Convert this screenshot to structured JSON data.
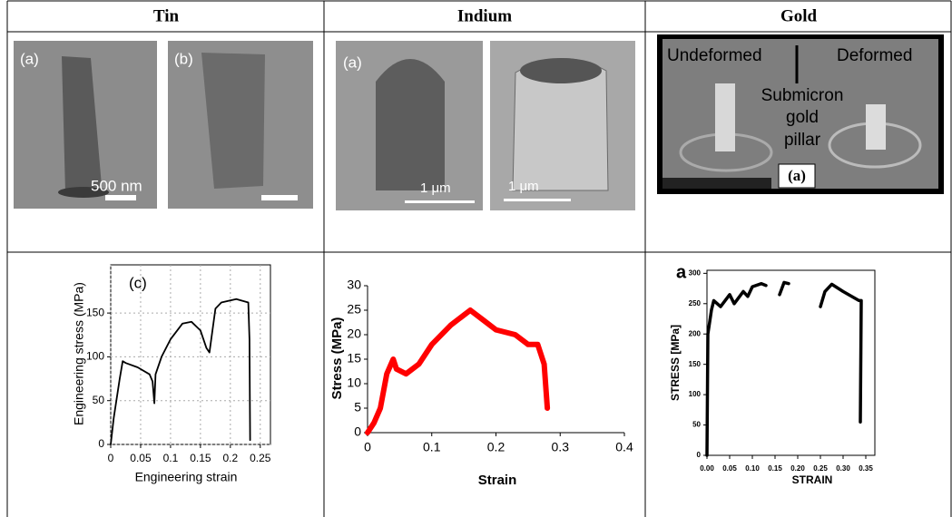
{
  "table": {
    "header": [
      "Tin",
      "Indium",
      "Gold"
    ]
  },
  "images": {
    "tin": {
      "labels": [
        "(a)",
        "(b)"
      ],
      "scale": "500 nm"
    },
    "indium": {
      "labels": [
        "(a)"
      ],
      "scales": [
        "1 μm",
        "1 μm"
      ]
    },
    "gold": {
      "labels": [
        "Undeformed",
        "Deformed",
        "Submicron",
        "gold",
        "pillar",
        "(a)"
      ]
    }
  },
  "charts": [
    {
      "type": "line",
      "panel": "(c)",
      "xlabel": "Engineering strain",
      "ylabel": "Engineering stress (MPa)",
      "color": "#000000",
      "xlim": [
        0,
        0.267
      ],
      "ylim": [
        0,
        205
      ],
      "xticks": [
        0,
        0.05,
        0.1,
        0.15,
        0.2,
        0.25
      ],
      "yticks": [
        0,
        50,
        100,
        150
      ],
      "x": [
        0,
        0.005,
        0.015,
        0.02,
        0.025,
        0.045,
        0.065,
        0.07,
        0.073,
        0.075,
        0.085,
        0.1,
        0.12,
        0.135,
        0.15,
        0.16,
        0.165,
        0.17,
        0.175,
        0.185,
        0.21,
        0.23,
        0.232,
        0.233
      ],
      "y": [
        0,
        30,
        75,
        95,
        93,
        88,
        80,
        72,
        47,
        80,
        100,
        120,
        138,
        140,
        130,
        110,
        105,
        130,
        155,
        162,
        166,
        162,
        120,
        5
      ]
    },
    {
      "type": "line",
      "xlabel": "Strain",
      "ylabel": "Stress (MPa)",
      "color": "#ff0000",
      "xlim": [
        0,
        0.4
      ],
      "ylim": [
        0,
        30
      ],
      "xticks": [
        0,
        0.1,
        0.2,
        0.3,
        0.4
      ],
      "yticks": [
        0,
        5,
        10,
        15,
        20,
        25,
        30
      ],
      "x": [
        0,
        0.01,
        0.02,
        0.03,
        0.04,
        0.045,
        0.06,
        0.08,
        0.1,
        0.13,
        0.16,
        0.18,
        0.2,
        0.23,
        0.25,
        0.265,
        0.275,
        0.28
      ],
      "y": [
        0,
        2,
        5,
        12,
        15,
        13,
        12,
        14,
        18,
        22,
        25,
        23,
        21,
        20,
        18,
        18,
        14,
        5
      ]
    },
    {
      "type": "line",
      "panel": "a",
      "xlabel": "STRAIN",
      "ylabel": "STRESS [MPa]",
      "color": "#000000",
      "xlim": [
        0,
        0.37
      ],
      "ylim": [
        0,
        305
      ],
      "xticks": [
        {
          "value": 0,
          "label": "0.00"
        },
        {
          "value": 0.05,
          "label": "0.05"
        },
        {
          "value": 0.1,
          "label": "0.10"
        },
        {
          "value": 0.15,
          "label": "0.15"
        },
        {
          "value": 0.2,
          "label": "0.20"
        },
        {
          "value": 0.25,
          "label": "0.25"
        },
        {
          "value": 0.3,
          "label": "0.30"
        },
        {
          "value": 0.35,
          "label": "0.35"
        }
      ],
      "yticks": [
        0,
        50,
        100,
        150,
        200,
        250,
        300
      ],
      "x": [
        0,
        0.002,
        0.01,
        0.015,
        0.03,
        0.05,
        0.06,
        0.08,
        0.09,
        0.1,
        0.12,
        0.13,
        null,
        0.16,
        0.17,
        0.18,
        null,
        0.25,
        0.26,
        0.275,
        0.3,
        0.335,
        0.34,
        0.338
      ],
      "y": [
        0,
        200,
        240,
        255,
        245,
        265,
        250,
        270,
        262,
        278,
        283,
        280,
        null,
        265,
        285,
        283,
        null,
        245,
        270,
        282,
        270,
        255,
        255,
        55
      ]
    }
  ]
}
